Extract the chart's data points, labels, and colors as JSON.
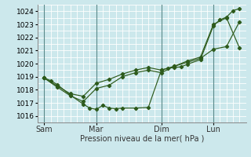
{
  "title": "",
  "xlabel": "Pression niveau de la mer( hPa )",
  "background_color": "#cce8ec",
  "grid_color": "#b0d8dc",
  "line_color": "#2d5a1b",
  "ylim": [
    1015.5,
    1024.5
  ],
  "yticks": [
    1016,
    1017,
    1018,
    1019,
    1020,
    1021,
    1022,
    1023,
    1024
  ],
  "day_labels": [
    "Sam",
    "Mar",
    "Dim",
    "Lun"
  ],
  "day_positions": [
    0,
    4,
    9,
    13
  ],
  "line1_x": [
    0,
    0.5,
    1,
    2,
    3,
    3.5,
    4,
    4.5,
    5,
    5.5,
    6,
    7,
    8,
    9,
    9.5,
    10,
    10.5,
    11,
    12,
    13,
    13.5,
    14,
    14.5,
    15
  ],
  "line1_y": [
    1018.9,
    1018.7,
    1018.4,
    1017.6,
    1016.9,
    1016.6,
    1016.5,
    1016.8,
    1016.6,
    1016.55,
    1016.6,
    1016.6,
    1016.65,
    1019.5,
    1019.65,
    1019.7,
    1019.75,
    1019.95,
    1020.3,
    1022.9,
    1023.35,
    1023.55,
    1024.05,
    1024.2
  ],
  "line2_x": [
    0,
    1,
    2,
    3,
    4,
    5,
    6,
    7,
    8,
    9,
    10,
    11,
    12,
    13,
    14,
    15
  ],
  "line2_y": [
    1018.9,
    1018.3,
    1017.7,
    1017.5,
    1018.5,
    1018.8,
    1019.2,
    1019.5,
    1019.7,
    1019.5,
    1019.8,
    1020.1,
    1020.4,
    1021.1,
    1021.3,
    1023.2
  ],
  "line3_x": [
    0,
    1,
    2,
    3,
    4,
    5,
    6,
    7,
    8,
    9,
    10,
    11,
    12,
    13,
    14,
    15
  ],
  "line3_y": [
    1018.9,
    1018.2,
    1017.55,
    1017.1,
    1018.1,
    1018.35,
    1019.0,
    1019.3,
    1019.5,
    1019.3,
    1019.8,
    1020.2,
    1020.5,
    1023.0,
    1023.5,
    1021.2
  ],
  "xmin": -0.5,
  "xmax": 15.5,
  "vline_color": "#5a8a8a",
  "xlabel_fontsize": 7,
  "ytick_fontsize": 6.5,
  "xtick_fontsize": 7
}
